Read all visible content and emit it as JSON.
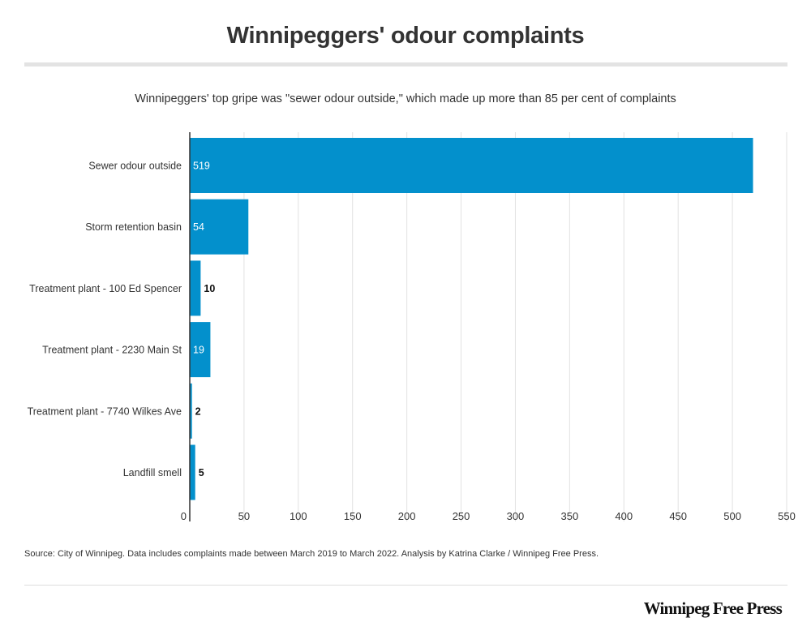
{
  "header": {
    "title": "Winnipeggers' odour complaints",
    "subtitle": "Winnipeggers' top gripe was \"sewer odour outside,\" which made up more than 85 per cent of complaints"
  },
  "footer": {
    "source": "Source: City of Winnipeg. Data includes complaints made between March 2019 to March 2022. Analysis by Katrina Clarke / Winnipeg Free Press.",
    "logo": "Winnipeg Free Press"
  },
  "colors": {
    "bar": "#0390cc",
    "grid": "#e2e2e2",
    "axis": "#333333"
  },
  "chart_data": {
    "type": "bar",
    "orientation": "horizontal",
    "categories": [
      "Sewer odour outside",
      "Storm retention basin",
      "Treatment plant - 100 Ed Spencer",
      "Treatment plant - 2230 Main St",
      "Treatment plant - 7740 Wilkes Ave",
      "Landfill smell"
    ],
    "values": [
      519,
      54,
      10,
      19,
      2,
      5
    ],
    "xlim": [
      0,
      550
    ],
    "xticks": [
      0,
      50,
      100,
      150,
      200,
      250,
      300,
      350,
      400,
      450,
      500,
      550
    ],
    "grid": true
  }
}
